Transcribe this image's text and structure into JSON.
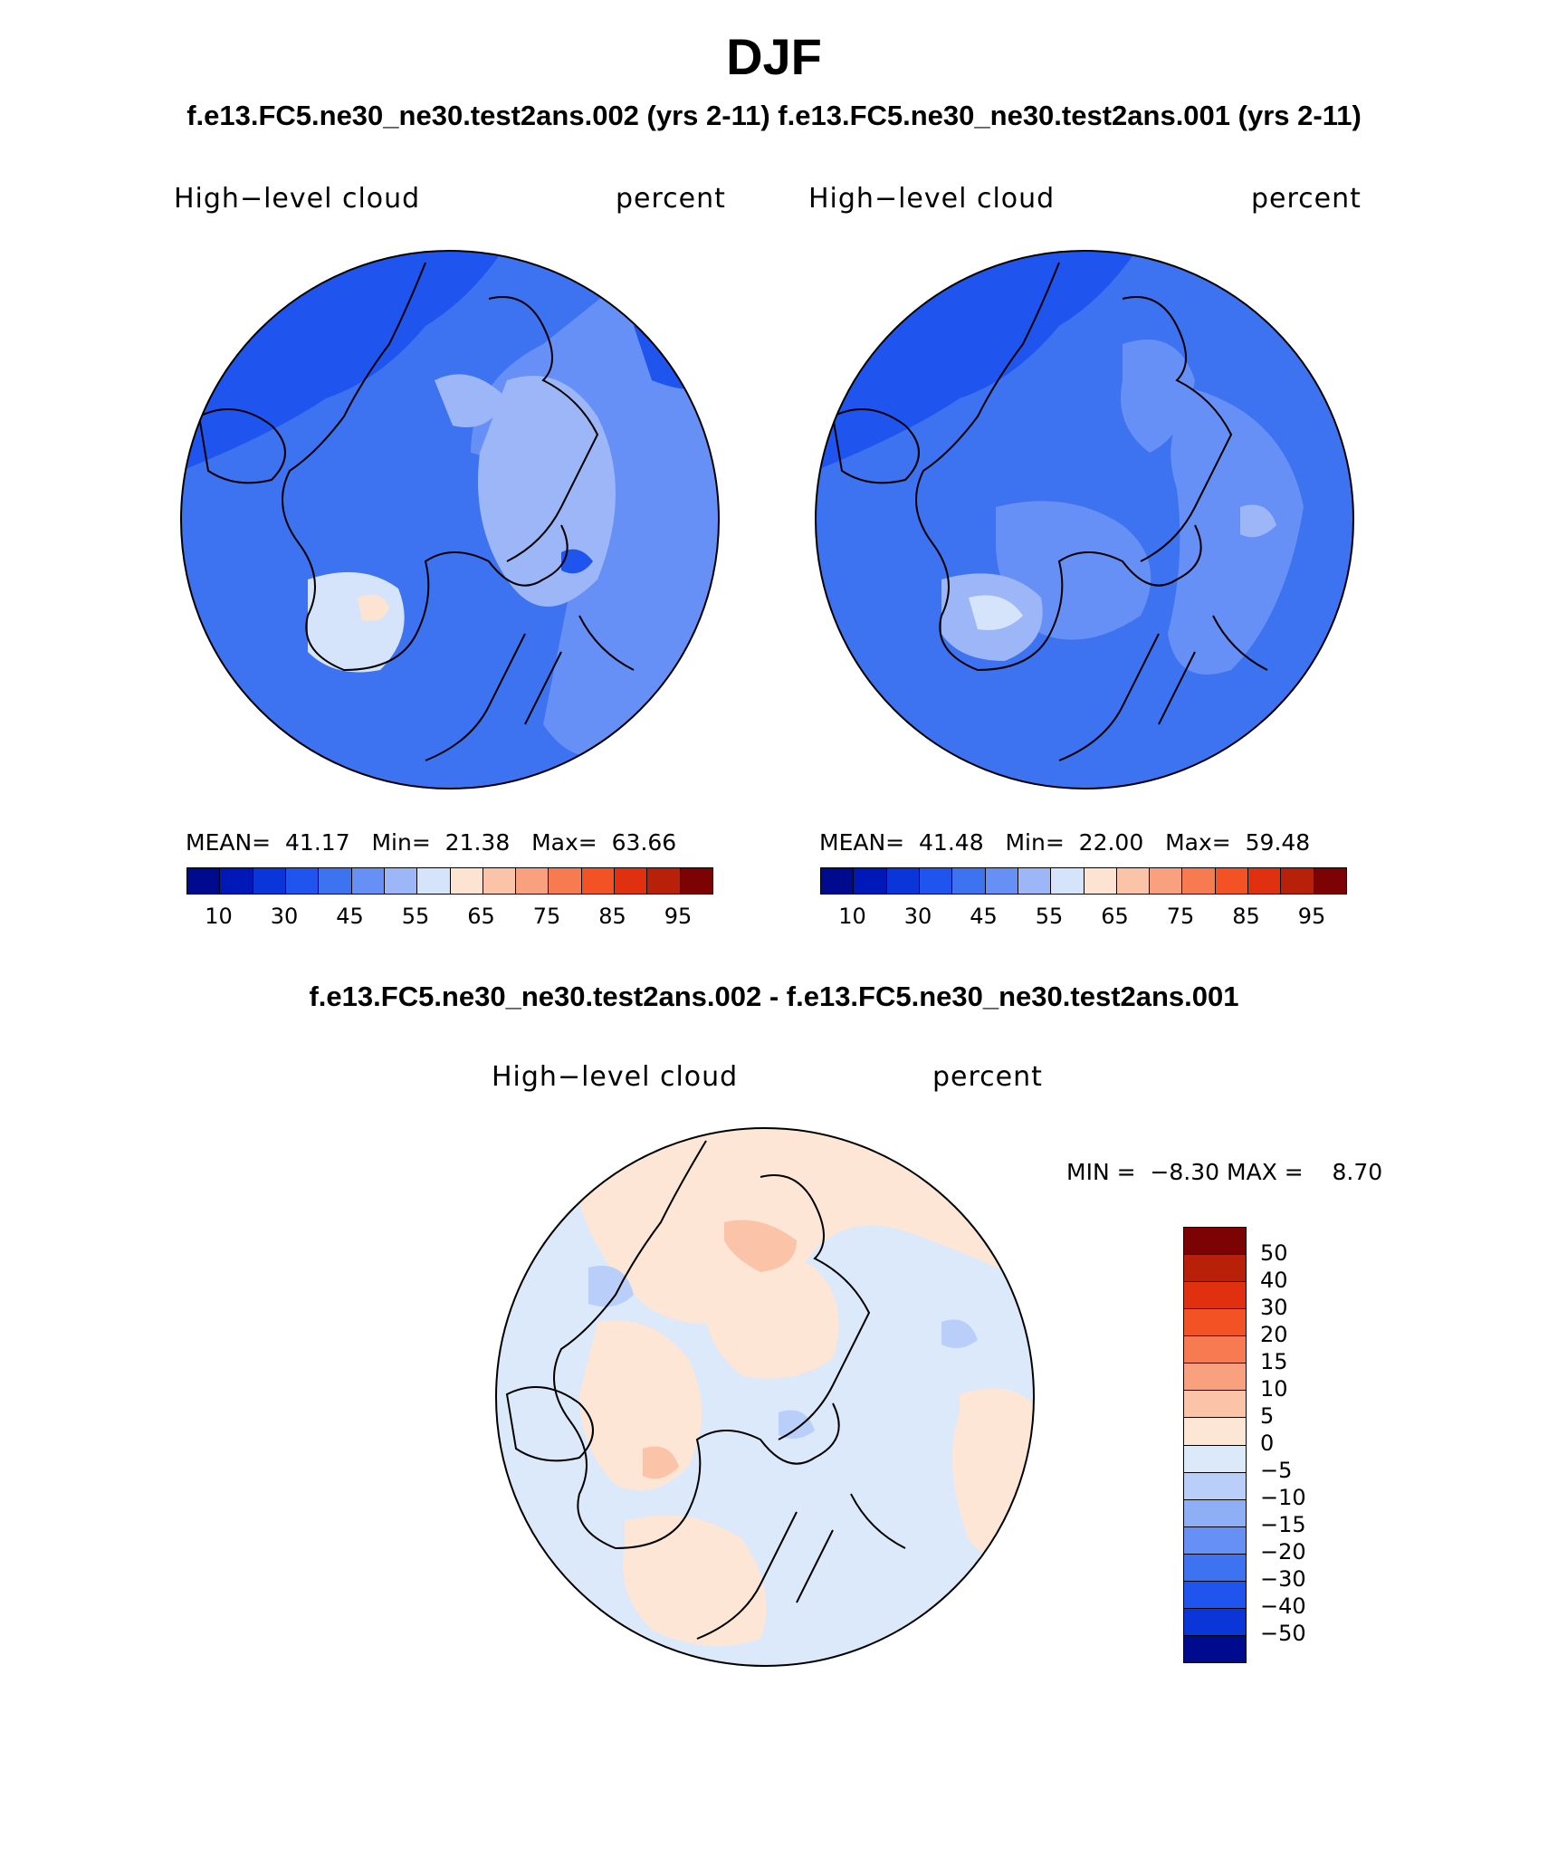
{
  "figure": {
    "title": "DJF",
    "subtitle_top": "f.e13.FC5.ne30_ne30.test2ans.002 (yrs 2-11) f.e13.FC5.ne30_ne30.test2ans.001 (yrs 2-11)",
    "subtitle_diff": "f.e13.FC5.ne30_ne30.test2ans.002 - f.e13.FC5.ne30_ne30.test2ans.001"
  },
  "panels": [
    {
      "variable": "High−level cloud",
      "units": "percent",
      "mean_label": "MEAN=",
      "mean": "41.17",
      "min_label": "Min=",
      "min": "21.38",
      "max_label": "Max=",
      "max": "63.66"
    },
    {
      "variable": "High−level cloud",
      "units": "percent",
      "mean_label": "MEAN=",
      "mean": "41.48",
      "min_label": "Min=",
      "min": "22.00",
      "max_label": "Max=",
      "max": "59.48"
    }
  ],
  "diff_panel": {
    "variable": "High−level cloud",
    "units": "percent",
    "min_label": "MIN =",
    "min": "−8.30",
    "max_label": "MAX =",
    "max": "8.70"
  },
  "colorbar_main": {
    "colors": [
      "#000a8f",
      "#0018b8",
      "#0a35d8",
      "#1f55ee",
      "#3d72f0",
      "#6690f5",
      "#9cb6f8",
      "#d6e4fb",
      "#fde3d2",
      "#fbc4a8",
      "#f9a07f",
      "#f77a50",
      "#f25224",
      "#e03010",
      "#b8200a",
      "#7d0203"
    ],
    "tick_labels": [
      "10",
      "30",
      "45",
      "55",
      "65",
      "75",
      "85",
      "95"
    ]
  },
  "colorbar_diff": {
    "colors": [
      "#7d0203",
      "#b8200a",
      "#e03010",
      "#f25224",
      "#f77a50",
      "#f9a07f",
      "#fbc4a8",
      "#fde6d6",
      "#dce9fb",
      "#b9cff9",
      "#8eaff6",
      "#6690f5",
      "#3d72f0",
      "#1f55ee",
      "#0a35d8",
      "#000a8f"
    ],
    "tick_labels": [
      "50",
      "40",
      "30",
      "20",
      "15",
      "10",
      "5",
      "0",
      "−5",
      "−10",
      "−15",
      "−20",
      "−30",
      "−40",
      "−50"
    ]
  },
  "map_fill": {
    "panel1_base": "#3d72f0",
    "panel1_mid": "#6690f5",
    "panel1_light": "#9cb6f8",
    "panel1_dark": "#1f55ee",
    "panel1_pale": "#d6e4fb",
    "panel1_peach": "#fde3d2",
    "diff_base": "#dce9fb",
    "diff_pos": "#fde6d6",
    "diff_pos2": "#fbc4a8",
    "diff_neg": "#b9cff9"
  }
}
